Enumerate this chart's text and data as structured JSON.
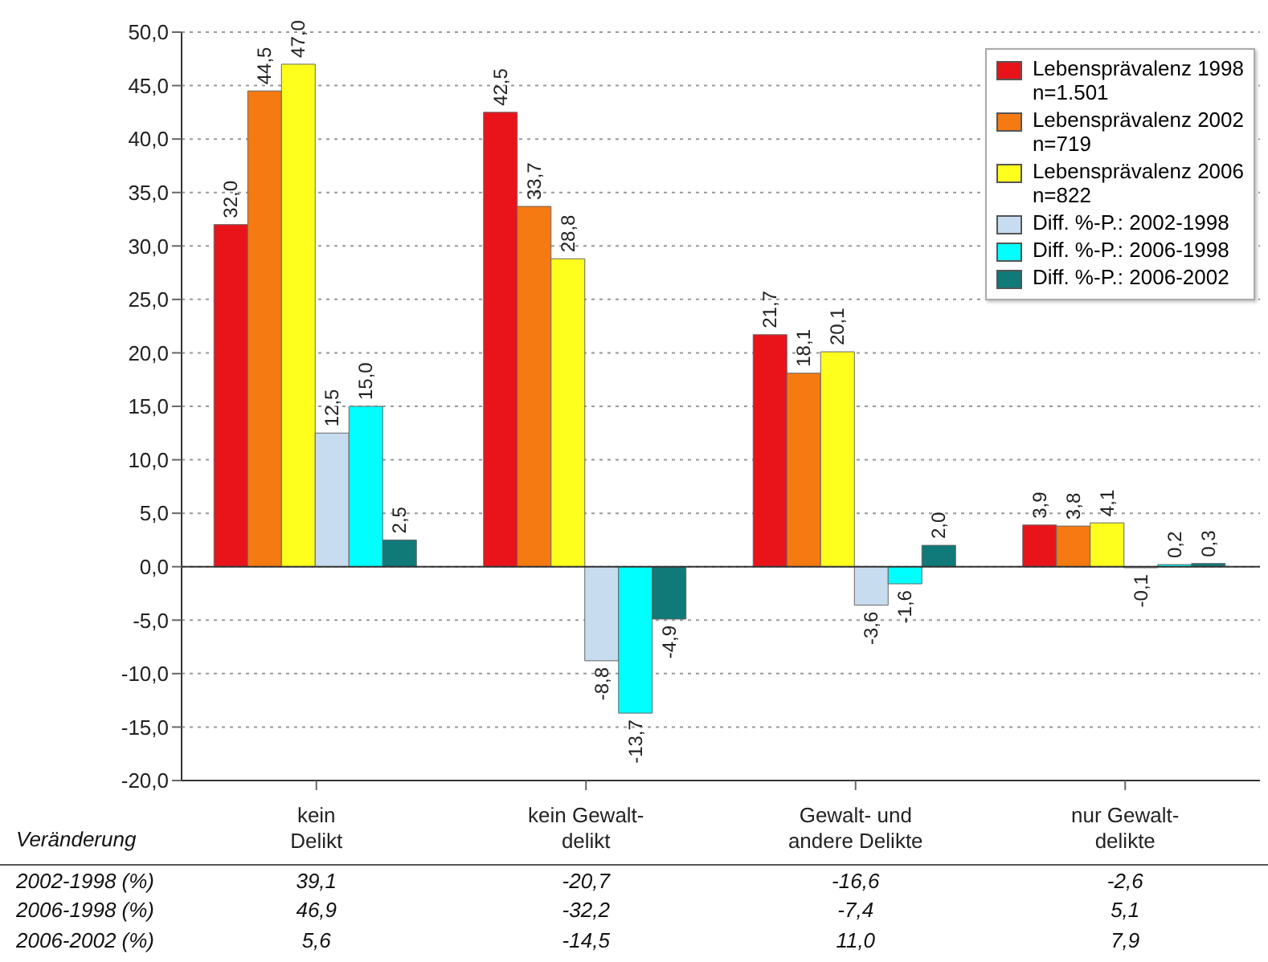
{
  "chart_data": {
    "type": "bar",
    "categories": [
      "kein\nDelikt",
      "kein Gewalt-\ndelikt",
      "Gewalt- und\nandere Delikte",
      "nur Gewalt-\ndelikte"
    ],
    "series": [
      {
        "name": "Lebensprävalenz 1998\nn=1.501",
        "color": "#e8141a",
        "values": [
          32.0,
          42.5,
          21.7,
          3.9
        ],
        "value_labels": [
          "32,0",
          "42,5",
          "21,7",
          "3,9"
        ]
      },
      {
        "name": "Lebensprävalenz 2002\nn=719",
        "color": "#f57a12",
        "values": [
          44.5,
          33.7,
          18.1,
          3.8
        ],
        "value_labels": [
          "44,5",
          "33,7",
          "18,1",
          "3,8"
        ]
      },
      {
        "name": "Lebensprävalenz 2006\nn=822",
        "color": "#ffff1e",
        "values": [
          47.0,
          28.8,
          20.1,
          4.1
        ],
        "value_labels": [
          "47,0",
          "28,8",
          "20,1",
          "4,1"
        ]
      },
      {
        "name": "Diff. %-P.: 2002-1998",
        "color": "#c8dcf0",
        "values": [
          12.5,
          -8.8,
          -3.6,
          -0.1
        ],
        "value_labels": [
          "12,5",
          "-8,8",
          "-3,6",
          "-0,1"
        ]
      },
      {
        "name": "Diff. %-P.: 2006-1998",
        "color": "#00ffff",
        "values": [
          15.0,
          -13.7,
          -1.6,
          0.2
        ],
        "value_labels": [
          "15,0",
          "-13,7",
          "-1,6",
          "0,2"
        ]
      },
      {
        "name": "Diff. %-P.: 2006-2002",
        "color": "#0f7a78",
        "values": [
          2.5,
          -4.9,
          2.0,
          0.3
        ],
        "value_labels": [
          "2,5",
          "-4,9",
          "2,0",
          "0,3"
        ]
      }
    ],
    "ylim": [
      -20,
      50
    ],
    "yticks": [
      {
        "value": -20,
        "label": "-20,0"
      },
      {
        "value": -15,
        "label": "-15,0"
      },
      {
        "value": -10,
        "label": "-10,0"
      },
      {
        "value": -5,
        "label": "-5,0"
      },
      {
        "value": 0,
        "label": "0,0"
      },
      {
        "value": 5,
        "label": "5,0"
      },
      {
        "value": 10,
        "label": "10,0"
      },
      {
        "value": 15,
        "label": "15,0"
      },
      {
        "value": 20,
        "label": "20,0"
      },
      {
        "value": 25,
        "label": "25,0"
      },
      {
        "value": 30,
        "label": "30,0"
      },
      {
        "value": 35,
        "label": "35,0"
      },
      {
        "value": 40,
        "label": "40,0"
      },
      {
        "value": 45,
        "label": "45,0"
      },
      {
        "value": 50,
        "label": "50,0"
      }
    ],
    "grid": "y",
    "legend": "top right",
    "annotations": [
      "Veränderung",
      "2002-1998 (%)",
      "39,1",
      "-20,7",
      "-16,6",
      "-2,6",
      "2006-1998 (%)",
      "46,9",
      "-32,2",
      "-7,4",
      "5,1",
      "2006-2002 (%)",
      "5,6",
      "-14,5",
      "11,0",
      "7,9"
    ]
  }
}
